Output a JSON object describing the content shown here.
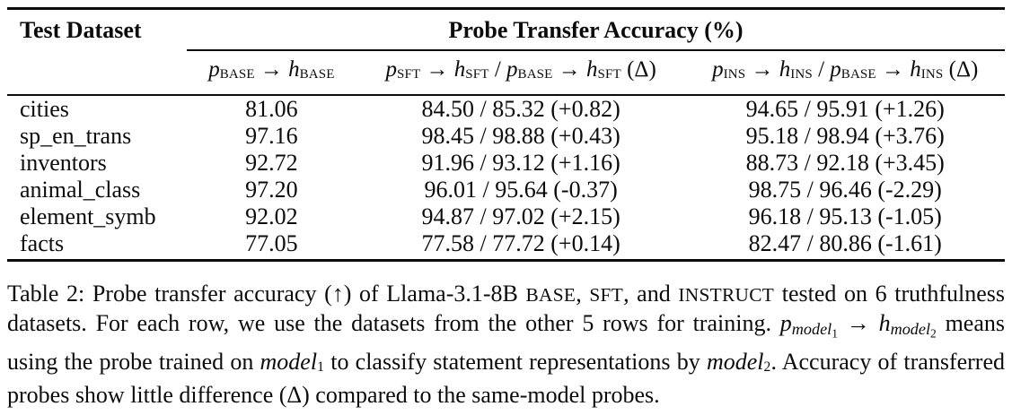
{
  "table": {
    "header": {
      "dataset": "Test Dataset",
      "group": "Probe Transfer Accuracy (%)",
      "col_base": [
        {
          "t": "p",
          "s": "i"
        },
        {
          "t": "BASE",
          "s": "sub"
        },
        {
          "t": " → "
        },
        {
          "t": "h",
          "s": "i"
        },
        {
          "t": "BASE",
          "s": "sub"
        }
      ],
      "col_sft": [
        {
          "t": "p",
          "s": "i"
        },
        {
          "t": "SFT",
          "s": "sub"
        },
        {
          "t": " → "
        },
        {
          "t": "h",
          "s": "i"
        },
        {
          "t": "SFT",
          "s": "sub"
        },
        {
          "t": " / "
        },
        {
          "t": "p",
          "s": "i"
        },
        {
          "t": "BASE",
          "s": "sub"
        },
        {
          "t": " → "
        },
        {
          "t": "h",
          "s": "i"
        },
        {
          "t": "SFT",
          "s": "sub"
        },
        {
          "t": " (Δ)"
        }
      ],
      "col_ins": [
        {
          "t": "p",
          "s": "i"
        },
        {
          "t": "INS",
          "s": "sub"
        },
        {
          "t": " → "
        },
        {
          "t": "h",
          "s": "i"
        },
        {
          "t": "INS",
          "s": "sub"
        },
        {
          "t": " / "
        },
        {
          "t": "p",
          "s": "i"
        },
        {
          "t": "BASE",
          "s": "sub"
        },
        {
          "t": " → "
        },
        {
          "t": "h",
          "s": "i"
        },
        {
          "t": "INS",
          "s": "sub"
        },
        {
          "t": " (Δ)"
        }
      ]
    },
    "rows": [
      {
        "name": "cities",
        "base": "81.06",
        "sft": "84.50 / 85.32 (+0.82)",
        "ins": "94.65 / 95.91 (+1.26)"
      },
      {
        "name": "sp_en_trans",
        "base": "97.16",
        "sft": "98.45 / 98.88 (+0.43)",
        "ins": "95.18 / 98.94 (+3.76)"
      },
      {
        "name": "inventors",
        "base": "92.72",
        "sft": "91.96 / 93.12 (+1.16)",
        "ins": "88.73 / 92.18 (+3.45)"
      },
      {
        "name": "animal_class",
        "base": "97.20",
        "sft": "96.01 / 95.64 (-0.37)",
        "ins": "98.75 / 96.46 (-2.29)"
      },
      {
        "name": "element_symb",
        "base": "92.02",
        "sft": "94.87 / 97.02 (+2.15)",
        "ins": "96.18 / 95.13 (-1.05)"
      },
      {
        "name": "facts",
        "base": "77.05",
        "sft": "77.58 / 77.72 (+0.14)",
        "ins": "82.47 / 80.86 (-1.61)"
      }
    ]
  },
  "caption": {
    "segments": [
      {
        "t": "Table 2: Probe transfer accuracy (↑) of Llama-3.1-8B "
      },
      {
        "t": "BASE",
        "s": "sc"
      },
      {
        "t": ", "
      },
      {
        "t": "SFT",
        "s": "sc"
      },
      {
        "t": ", and "
      },
      {
        "t": "INSTRUCT",
        "s": "sc"
      },
      {
        "t": " tested on 6 truthfulness datasets. For each row, we use the datasets from the other 5 rows for training. "
      },
      {
        "t": "p",
        "s": "i"
      },
      {
        "t": "model",
        "s": "isub"
      },
      {
        "t": "1",
        "s": "subsub"
      },
      {
        "t": " → "
      },
      {
        "t": "h",
        "s": "i"
      },
      {
        "t": "model",
        "s": "isub"
      },
      {
        "t": "2",
        "s": "subsub"
      },
      {
        "t": " means using the probe trained on "
      },
      {
        "t": "model",
        "s": "i"
      },
      {
        "t": "1",
        "s": "sub"
      },
      {
        "t": " to classify statement representations by "
      },
      {
        "t": "model",
        "s": "i"
      },
      {
        "t": "2",
        "s": "sub"
      },
      {
        "t": ". Accuracy of transferred probes show little difference (Δ) compared to the same-model probes."
      }
    ]
  }
}
